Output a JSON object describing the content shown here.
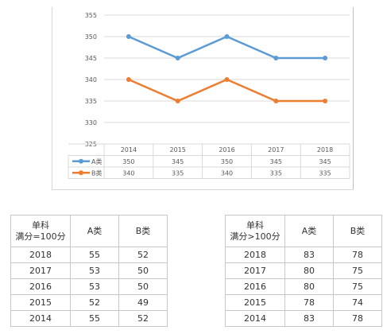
{
  "chart_data": {
    "type": "line",
    "categories": [
      "2014",
      "2015",
      "2016",
      "2017",
      "2018"
    ],
    "series": [
      {
        "name": "A类",
        "values": [
          350,
          345,
          350,
          345,
          345
        ],
        "color": "#5b9bd5"
      },
      {
        "name": "B类",
        "values": [
          340,
          335,
          340,
          335,
          335
        ],
        "color": "#ed7d31"
      }
    ],
    "ylim": [
      325,
      355
    ],
    "yticks": [
      325,
      330,
      335,
      340,
      345,
      350,
      355
    ],
    "grid": true,
    "legend": "data-table",
    "data_table": true
  },
  "tables": [
    {
      "header": {
        "col1_line1": "单科",
        "col1_line2": "满分=100分",
        "col2": "A类",
        "col3": "B类"
      },
      "rows": [
        [
          "2018",
          "55",
          "52"
        ],
        [
          "2017",
          "53",
          "50"
        ],
        [
          "2016",
          "53",
          "50"
        ],
        [
          "2015",
          "52",
          "49"
        ],
        [
          "2014",
          "55",
          "52"
        ]
      ]
    },
    {
      "header": {
        "col1_line1": "单科",
        "col1_line2": "满分>100分",
        "col2": "A类",
        "col3": "B类"
      },
      "rows": [
        [
          "2018",
          "83",
          "78"
        ],
        [
          "2017",
          "80",
          "75"
        ],
        [
          "2016",
          "80",
          "75"
        ],
        [
          "2015",
          "78",
          "74"
        ],
        [
          "2014",
          "83",
          "78"
        ]
      ]
    }
  ]
}
